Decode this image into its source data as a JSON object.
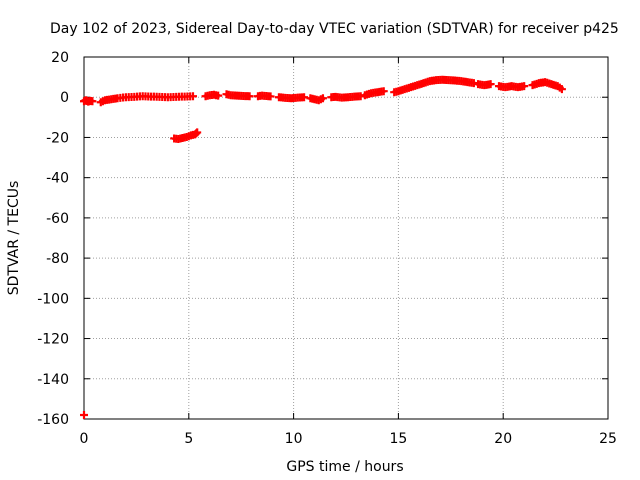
{
  "chart_data": {
    "type": "scatter",
    "title": "Day 102 of 2023, Sidereal Day-to-day VTEC variation (SDTVAR) for receiver p425",
    "xlabel": "GPS time / hours",
    "ylabel": "SDTVAR / TECUs",
    "xlim": [
      0,
      25
    ],
    "ylim": [
      -160,
      20
    ],
    "xticks": [
      0,
      5,
      10,
      15,
      20,
      25
    ],
    "yticks": [
      20,
      0,
      -20,
      -40,
      -60,
      -80,
      -100,
      -120,
      -140,
      -160
    ],
    "grid": true,
    "marker": "plus",
    "color": "#ff0000",
    "series": [
      {
        "name": "SDTVAR",
        "segments": [
          {
            "x": [
              0.0,
              0.1,
              0.2,
              0.3,
              0.4
            ],
            "y": [
              -2.0,
              -1.5,
              -2.2,
              -1.8,
              -2.0
            ]
          },
          {
            "x": [
              0.8,
              1.0,
              1.3,
              1.6,
              2.0,
              2.4,
              2.8,
              3.2,
              3.6,
              4.0,
              4.4,
              4.8,
              5.2
            ],
            "y": [
              -2.5,
              -1.5,
              -1.0,
              -0.5,
              0.0,
              0.2,
              0.5,
              0.3,
              0.2,
              0.0,
              0.2,
              0.3,
              0.5
            ]
          },
          {
            "x": [
              5.8,
              6.0,
              6.2,
              6.4
            ],
            "y": [
              0.5,
              1.0,
              1.2,
              0.8
            ]
          },
          {
            "x": [
              6.8,
              7.0,
              7.3,
              7.6,
              7.9
            ],
            "y": [
              1.5,
              1.0,
              0.8,
              0.6,
              0.5
            ]
          },
          {
            "x": [
              8.3,
              8.5,
              8.7,
              8.9
            ],
            "y": [
              0.5,
              0.8,
              0.6,
              0.4
            ]
          },
          {
            "x": [
              9.3,
              9.6,
              9.9,
              10.2,
              10.5
            ],
            "y": [
              0.0,
              -0.3,
              -0.5,
              -0.2,
              0.0
            ]
          },
          {
            "x": [
              10.8,
              11.0,
              11.2,
              11.4
            ],
            "y": [
              -0.5,
              -1.0,
              -1.5,
              -0.5
            ]
          },
          {
            "x": [
              11.8,
              12.0,
              12.3,
              12.6,
              12.9,
              13.2
            ],
            "y": [
              0.0,
              0.2,
              -0.2,
              0.0,
              0.3,
              0.5
            ]
          },
          {
            "x": [
              13.4,
              13.7,
              14.0,
              14.3
            ],
            "y": [
              1.0,
              2.0,
              2.5,
              3.0
            ]
          },
          {
            "x": [
              14.8,
              15.0,
              15.3,
              15.6,
              15.9,
              16.2,
              16.5,
              16.8,
              17.1,
              17.4,
              17.7,
              18.0,
              18.3,
              18.6
            ],
            "y": [
              2.5,
              3.0,
              4.0,
              5.0,
              6.0,
              7.0,
              8.0,
              8.5,
              8.7,
              8.5,
              8.3,
              8.0,
              7.5,
              7.0
            ]
          },
          {
            "x": [
              18.8,
              19.1,
              19.4
            ],
            "y": [
              6.5,
              6.0,
              6.5
            ]
          },
          {
            "x": [
              19.8,
              20.1,
              20.4,
              20.7,
              21.0
            ],
            "y": [
              5.5,
              5.0,
              5.5,
              5.0,
              5.5
            ]
          },
          {
            "x": [
              21.4,
              21.7,
              22.0,
              22.3,
              22.6,
              22.8
            ],
            "y": [
              6.0,
              7.0,
              7.5,
              6.5,
              5.5,
              4.0
            ]
          },
          {
            "x": [
              4.3,
              4.5,
              4.7,
              4.9,
              5.1,
              5.3,
              5.4
            ],
            "y": [
              -20.5,
              -20.8,
              -20.3,
              -19.8,
              -19.0,
              -18.5,
              -17.5
            ]
          },
          {
            "x": [
              0.0
            ],
            "y": [
              -158.0
            ]
          }
        ]
      }
    ]
  }
}
